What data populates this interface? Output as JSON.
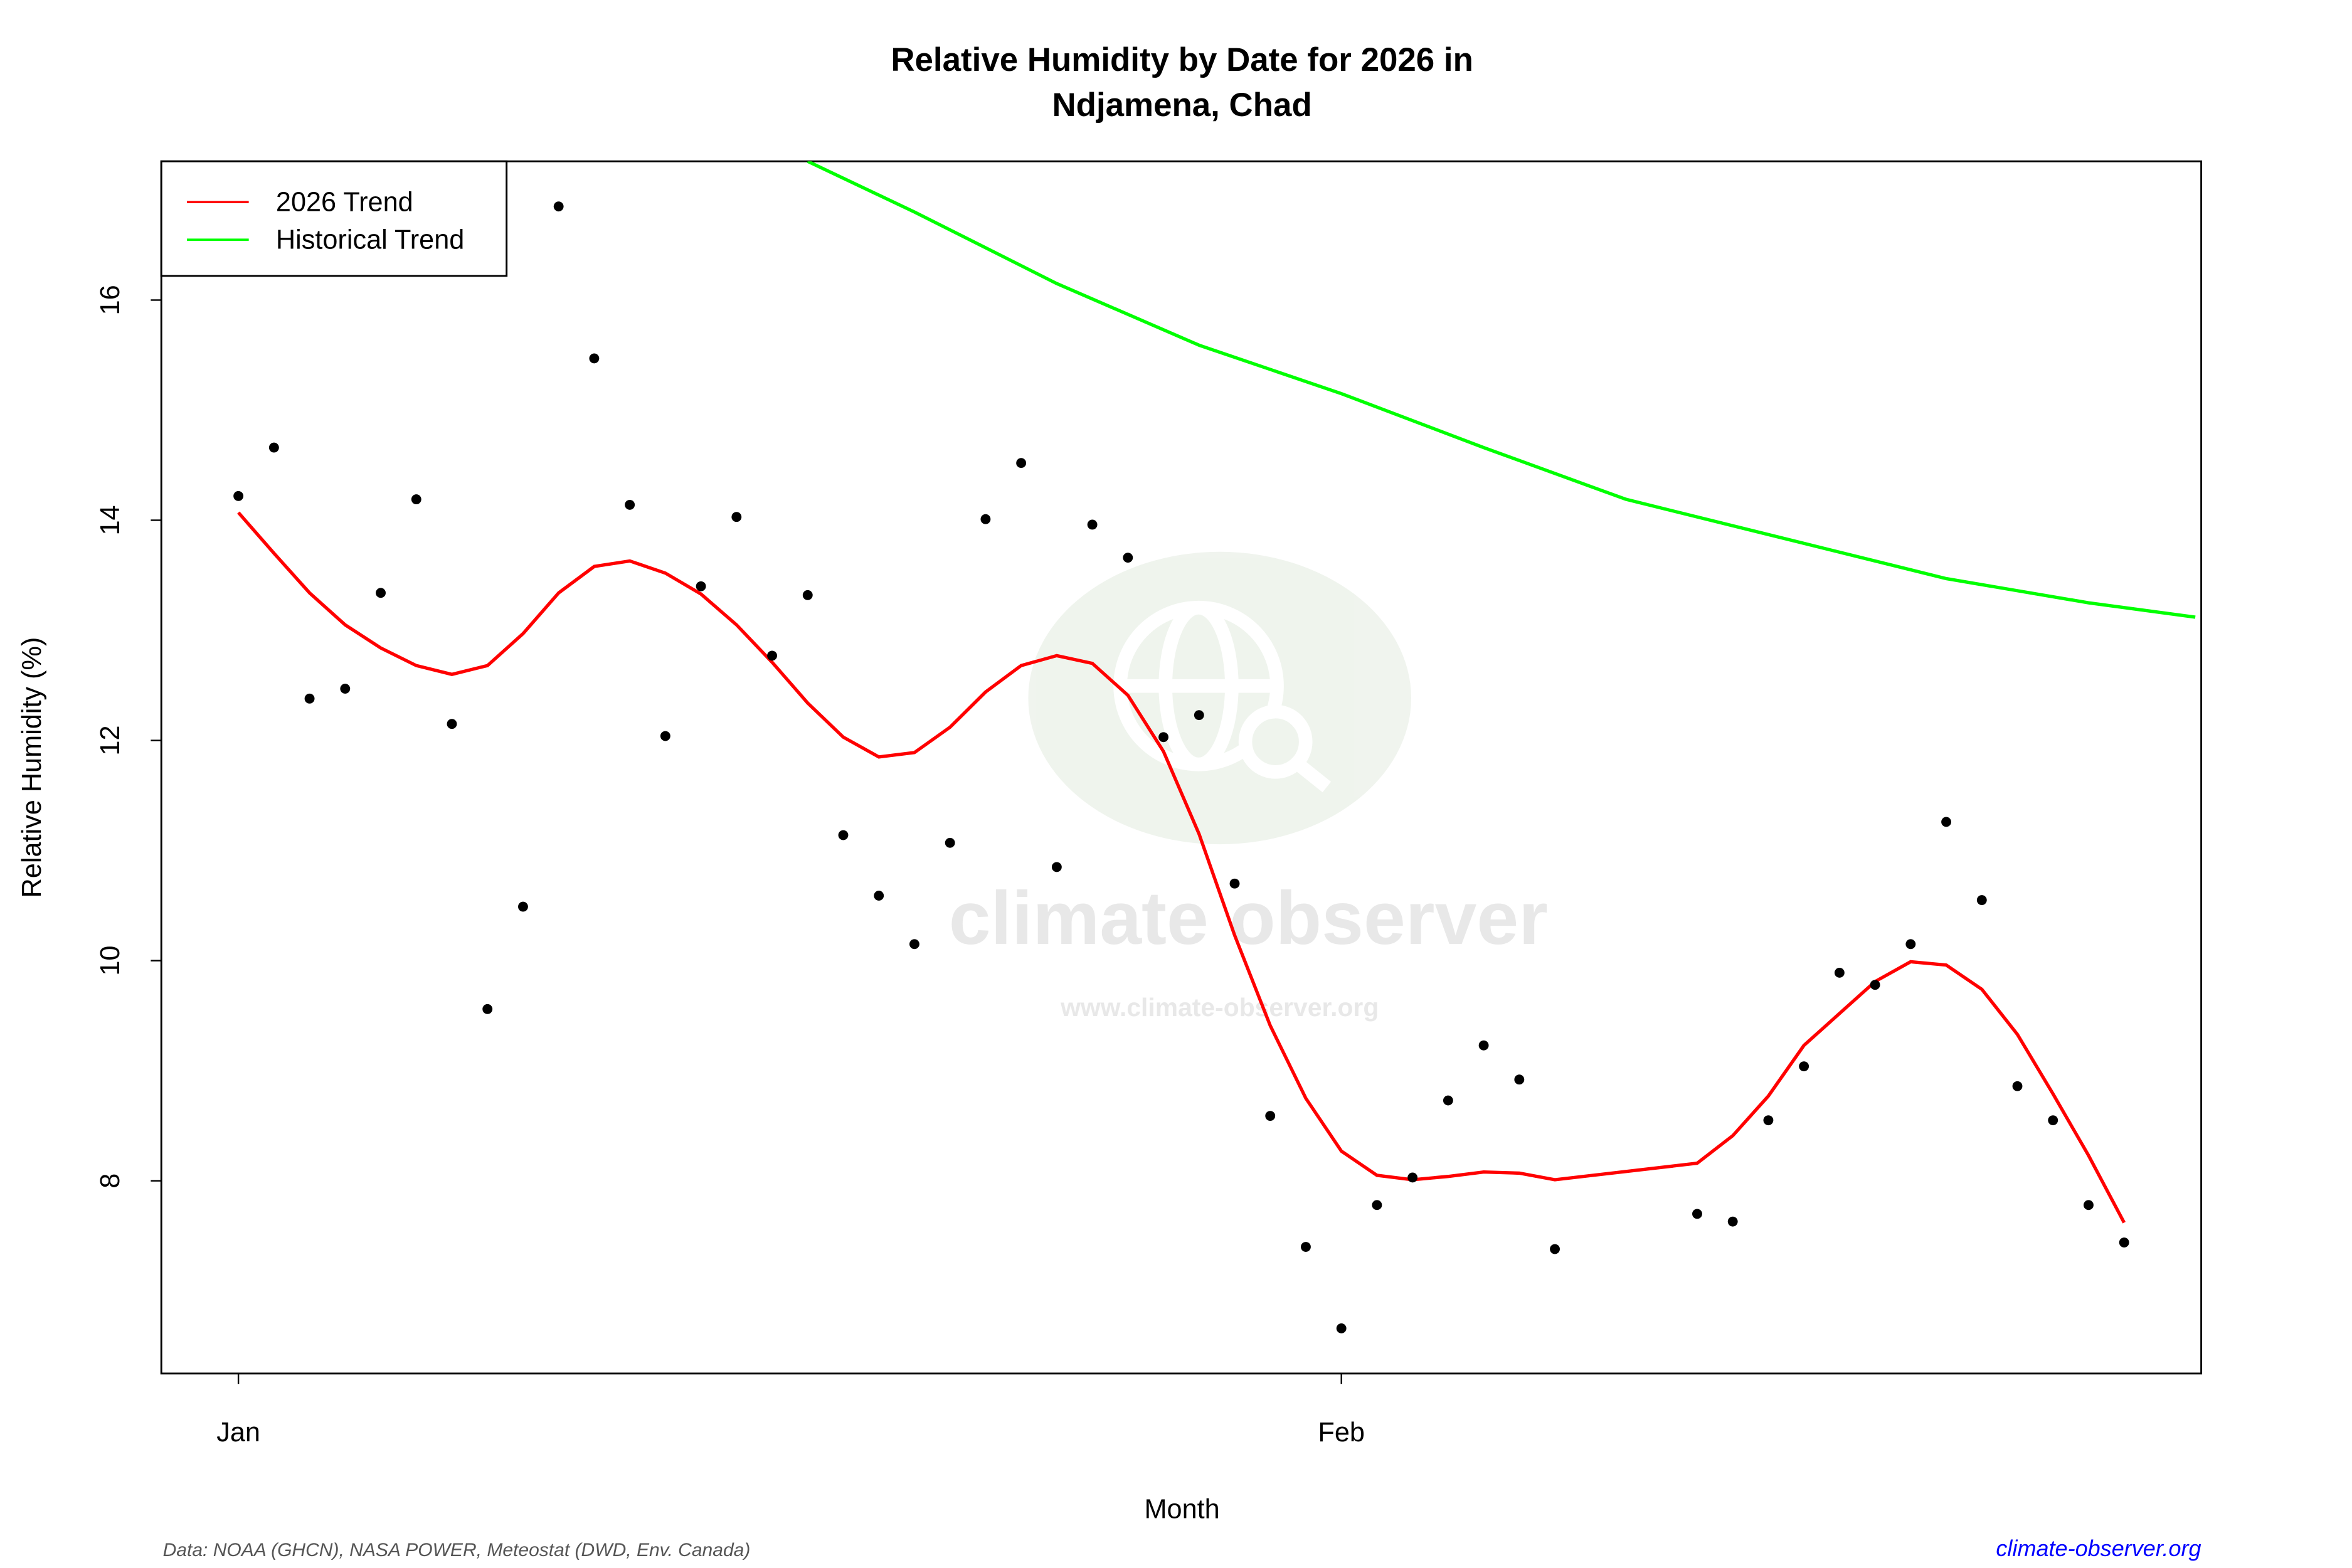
{
  "chart_data": {
    "type": "scatter",
    "title_line1": "Relative Humidity by Date for 2026 in",
    "title_line2": "Ndjamena, Chad",
    "xlabel": "Month",
    "ylabel": "Relative Humidity (%)",
    "xlim": [
      "2025-12-29T20:00",
      "2026-02-25T04:00"
    ],
    "ylim": [
      6.25,
      17.26
    ],
    "x_ticks": [
      {
        "date": "2026-01-01",
        "label": "Jan"
      },
      {
        "date": "2026-02-01",
        "label": "Feb"
      }
    ],
    "y_ticks": [
      8,
      10,
      12,
      14,
      16
    ],
    "grid": false,
    "legend": {
      "placement": "top-left",
      "entries": [
        {
          "label": "2026 Trend",
          "color": "#ff0000"
        },
        {
          "label": "Historical Trend",
          "color": "#00ff00"
        }
      ]
    },
    "points": [
      [
        "2026-01-01",
        14.22
      ],
      [
        "2026-01-02",
        14.66
      ],
      [
        "2026-01-03",
        12.38
      ],
      [
        "2026-01-04",
        12.47
      ],
      [
        "2026-01-05",
        13.34
      ],
      [
        "2026-01-06",
        14.19
      ],
      [
        "2026-01-07",
        12.15
      ],
      [
        "2026-01-08",
        9.56
      ],
      [
        "2026-01-09",
        10.49
      ],
      [
        "2026-01-10",
        16.85
      ],
      [
        "2026-01-11",
        15.47
      ],
      [
        "2026-01-12",
        14.14
      ],
      [
        "2026-01-13",
        12.04
      ],
      [
        "2026-01-14",
        13.4
      ],
      [
        "2026-01-15",
        14.03
      ],
      [
        "2026-01-16",
        12.77
      ],
      [
        "2026-01-17",
        13.32
      ],
      [
        "2026-01-18",
        11.14
      ],
      [
        "2026-01-19",
        10.59
      ],
      [
        "2026-01-20",
        10.15
      ],
      [
        "2026-01-21",
        11.07
      ],
      [
        "2026-01-22",
        14.01
      ],
      [
        "2026-01-23",
        14.52
      ],
      [
        "2026-01-24",
        10.85
      ],
      [
        "2026-01-25",
        13.96
      ],
      [
        "2026-01-26",
        13.66
      ],
      [
        "2026-01-27",
        12.03
      ],
      [
        "2026-01-28",
        12.23
      ],
      [
        "2026-01-29",
        10.7
      ],
      [
        "2026-01-30",
        8.59
      ],
      [
        "2026-01-31",
        7.4
      ],
      [
        "2026-02-01",
        6.66
      ],
      [
        "2026-02-02",
        7.78
      ],
      [
        "2026-02-03",
        8.03
      ],
      [
        "2026-02-04",
        8.73
      ],
      [
        "2026-02-05",
        9.23
      ],
      [
        "2026-02-06",
        8.92
      ],
      [
        "2026-02-07",
        7.38
      ],
      [
        "2026-02-11",
        7.7
      ],
      [
        "2026-02-12",
        7.63
      ],
      [
        "2026-02-13",
        8.55
      ],
      [
        "2026-02-14",
        9.04
      ],
      [
        "2026-02-15",
        9.89
      ],
      [
        "2026-02-16",
        9.78
      ],
      [
        "2026-02-17",
        10.15
      ],
      [
        "2026-02-18",
        11.26
      ],
      [
        "2026-02-19",
        10.55
      ],
      [
        "2026-02-20",
        8.86
      ],
      [
        "2026-02-21",
        8.55
      ],
      [
        "2026-02-22",
        7.78
      ],
      [
        "2026-02-23",
        7.44
      ]
    ],
    "trend_2026": [
      [
        "2026-01-01",
        14.07
      ],
      [
        "2026-01-02",
        13.7
      ],
      [
        "2026-01-03",
        13.34
      ],
      [
        "2026-01-04",
        13.05
      ],
      [
        "2026-01-05",
        12.84
      ],
      [
        "2026-01-06",
        12.68
      ],
      [
        "2026-01-07",
        12.6
      ],
      [
        "2026-01-08",
        12.68
      ],
      [
        "2026-01-09",
        12.97
      ],
      [
        "2026-01-10",
        13.34
      ],
      [
        "2026-01-11",
        13.58
      ],
      [
        "2026-01-12",
        13.63
      ],
      [
        "2026-01-13",
        13.52
      ],
      [
        "2026-01-14",
        13.33
      ],
      [
        "2026-01-15",
        13.05
      ],
      [
        "2026-01-16",
        12.71
      ],
      [
        "2026-01-17",
        12.34
      ],
      [
        "2026-01-18",
        12.03
      ],
      [
        "2026-01-19",
        11.85
      ],
      [
        "2026-01-20",
        11.89
      ],
      [
        "2026-01-21",
        12.12
      ],
      [
        "2026-01-22",
        12.44
      ],
      [
        "2026-01-23",
        12.68
      ],
      [
        "2026-01-24",
        12.77
      ],
      [
        "2026-01-25",
        12.7
      ],
      [
        "2026-01-26",
        12.41
      ],
      [
        "2026-01-27",
        11.9
      ],
      [
        "2026-01-28",
        11.15
      ],
      [
        "2026-01-29",
        10.23
      ],
      [
        "2026-01-30",
        9.41
      ],
      [
        "2026-01-31",
        8.75
      ],
      [
        "2026-02-01",
        8.27
      ],
      [
        "2026-02-02",
        8.05
      ],
      [
        "2026-02-03",
        8.01
      ],
      [
        "2026-02-04",
        8.04
      ],
      [
        "2026-02-05",
        8.08
      ],
      [
        "2026-02-06",
        8.07
      ],
      [
        "2026-02-07",
        8.01
      ],
      [
        "2026-02-11",
        8.16
      ],
      [
        "2026-02-12",
        8.41
      ],
      [
        "2026-02-13",
        8.77
      ],
      [
        "2026-02-14",
        9.23
      ],
      [
        "2026-02-15",
        9.52
      ],
      [
        "2026-02-16",
        9.81
      ],
      [
        "2026-02-17",
        9.99
      ],
      [
        "2026-02-18",
        9.96
      ],
      [
        "2026-02-19",
        9.74
      ],
      [
        "2026-02-20",
        9.33
      ],
      [
        "2026-02-21",
        8.79
      ],
      [
        "2026-02-22",
        8.23
      ],
      [
        "2026-02-23",
        7.62
      ]
    ],
    "trend_historical": [
      [
        "2026-01-17",
        17.26
      ],
      [
        "2026-01-20",
        16.8
      ],
      [
        "2026-01-24",
        16.15
      ],
      [
        "2026-01-28",
        15.59
      ],
      [
        "2026-02-01",
        15.15
      ],
      [
        "2026-02-05",
        14.66
      ],
      [
        "2026-02-09",
        14.19
      ],
      [
        "2026-02-14",
        13.79
      ],
      [
        "2026-02-18",
        13.47
      ],
      [
        "2026-02-22",
        13.25
      ],
      [
        "2026-02-25",
        13.12
      ]
    ]
  },
  "watermark": {
    "name": "climate observer",
    "url": "www.climate-observer.org"
  },
  "footer": {
    "source": "Data: NOAA (GHCN), NASA POWER, Meteostat (DWD, Env. Canada)",
    "site": "climate-observer.org",
    "site_color": "#0000ff"
  }
}
